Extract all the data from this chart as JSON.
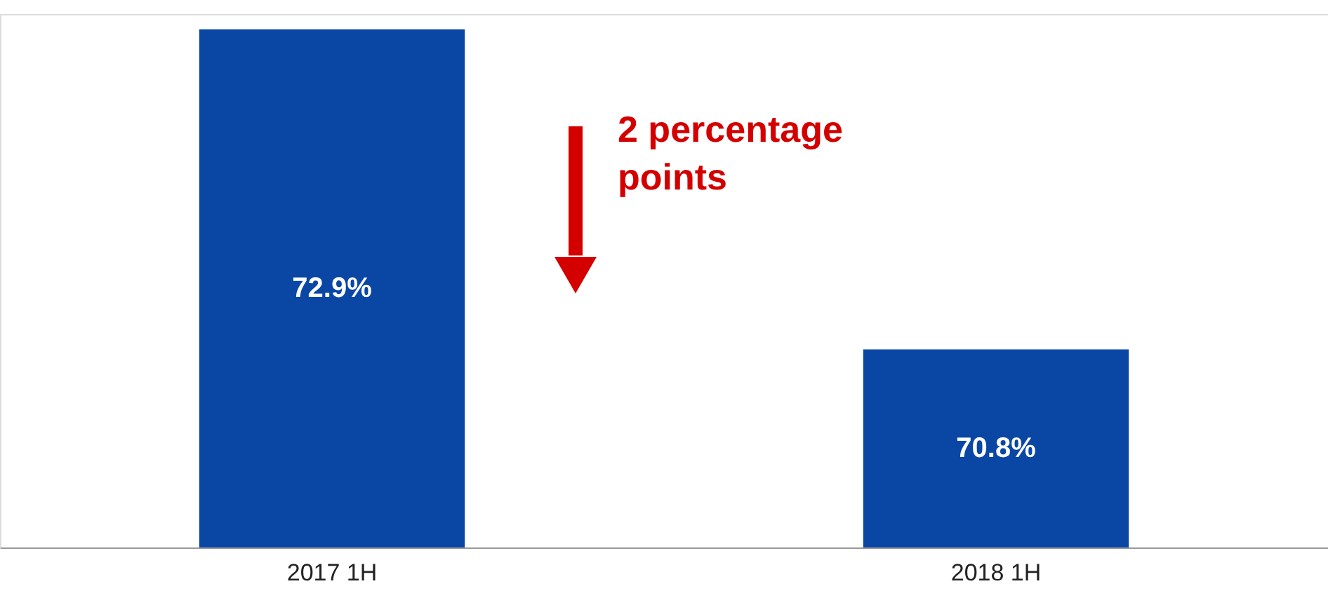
{
  "chart_data": {
    "type": "bar",
    "categories": [
      "2017 1H",
      "2018 1H"
    ],
    "values": [
      72.9,
      70.8
    ],
    "value_labels": [
      "72.9%",
      "70.8%"
    ],
    "ylim": [
      69.5,
      73.0
    ],
    "color": "#0a47a5",
    "tick_labels": "x",
    "annotations": [
      "2 percentage\npoints"
    ]
  }
}
